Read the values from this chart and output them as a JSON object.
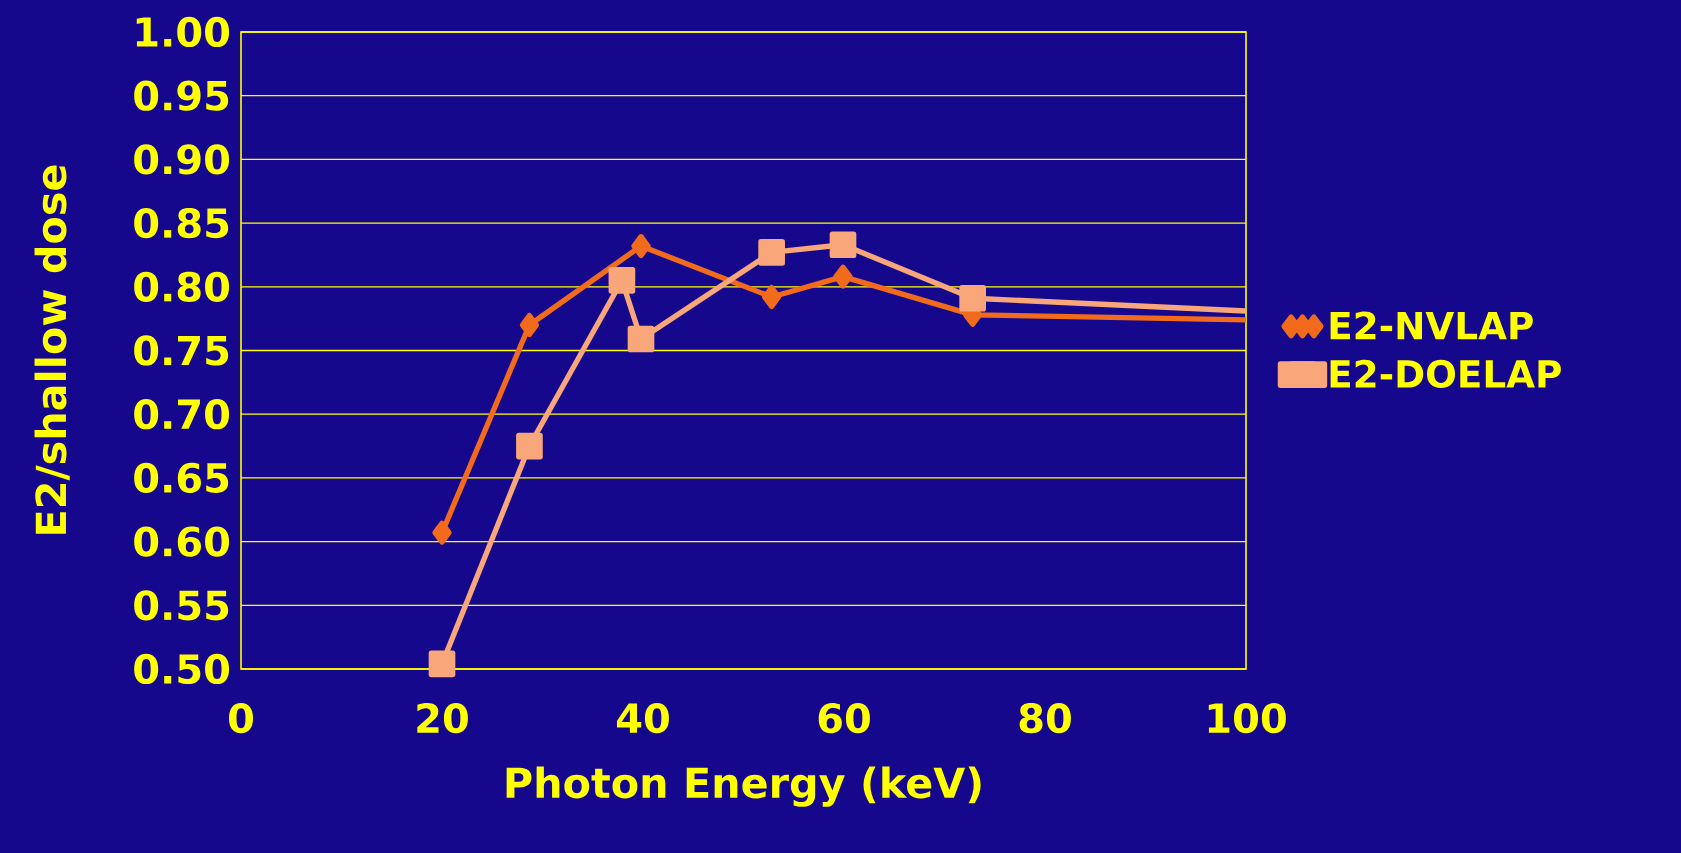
{
  "chart_data": {
    "type": "line",
    "xlabel": "Photon Energy (keV)",
    "ylabel": "E2/shallow dose",
    "xlim": [
      0,
      100
    ],
    "xticks": [
      0,
      20,
      40,
      60,
      80,
      100
    ],
    "ylim": [
      0.5,
      1.0
    ],
    "yticks": [
      {
        "value": 0.5,
        "label": "0.50"
      },
      {
        "value": 0.55,
        "label": "0.55"
      },
      {
        "value": 0.6,
        "label": "0.60"
      },
      {
        "value": 0.65,
        "label": "0.65"
      },
      {
        "value": 0.7,
        "label": "0.70"
      },
      {
        "value": 0.75,
        "label": "0.75"
      },
      {
        "value": 0.8,
        "label": "0.80"
      },
      {
        "value": 0.85,
        "label": "0.85"
      },
      {
        "value": 0.9,
        "label": "0.90"
      },
      {
        "value": 0.95,
        "label": "0.95"
      },
      {
        "value": 1.0,
        "label": "1.00"
      }
    ],
    "grid": "y",
    "legend": "right",
    "series": [
      {
        "name": "E2-NVLAP",
        "color": "#f26b1d",
        "marker": "diamond",
        "x": [
          20,
          28.7,
          39.8,
          52.8,
          59.9,
          72.8,
          100
        ],
        "values": [
          0.607,
          0.77,
          0.832,
          0.792,
          0.808,
          0.778,
          0.774
        ]
      },
      {
        "name": "E2-DOELAP",
        "color": "#f9a77a",
        "marker": "square",
        "x": [
          20,
          28.7,
          37.9,
          39.8,
          52.8,
          59.9,
          72.8,
          100
        ],
        "values": [
          0.504,
          0.675,
          0.805,
          0.759,
          0.827,
          0.833,
          0.791,
          0.781
        ]
      }
    ]
  }
}
